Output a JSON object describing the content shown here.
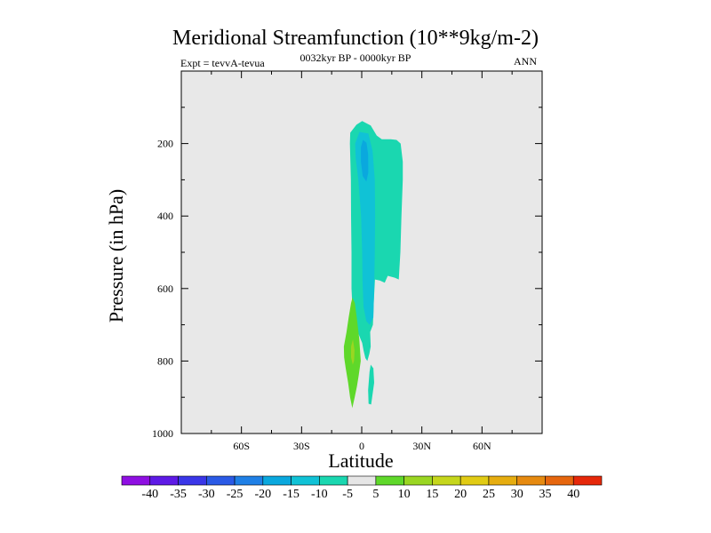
{
  "chart_data": {
    "type": "contour",
    "title": "Meridional Streamfunction (10**9kg/m-2)",
    "subtitle": "0032kyr BP - 0000kyr BP",
    "left_label": "Expt = tevvA-tevua",
    "right_label": "ANN",
    "xlabel": "Latitude",
    "ylabel": "Pressure (in hPa)",
    "xlim": [
      -90,
      90
    ],
    "ylim": [
      1000,
      0
    ],
    "x_ticks": [
      {
        "value": -60,
        "label": "60S"
      },
      {
        "value": -30,
        "label": "30S"
      },
      {
        "value": 0,
        "label": "0"
      },
      {
        "value": 30,
        "label": "30N"
      },
      {
        "value": 60,
        "label": "60N"
      }
    ],
    "y_ticks": [
      {
        "value": 200,
        "label": "200"
      },
      {
        "value": 400,
        "label": "400"
      },
      {
        "value": 600,
        "label": "600"
      },
      {
        "value": 800,
        "label": "800"
      },
      {
        "value": 1000,
        "label": "1000"
      }
    ],
    "background_color": "#e8e8e8",
    "regions": [
      {
        "name": "neg-5",
        "level": -10,
        "color": "#1ad7b0",
        "points": [
          [
            -5.7,
            170
          ],
          [
            -2.6,
            148
          ],
          [
            0.2,
            138
          ],
          [
            4.5,
            150
          ],
          [
            7.5,
            178
          ],
          [
            10,
            188
          ],
          [
            14.5,
            188
          ],
          [
            17.4,
            190
          ],
          [
            19.4,
            200
          ],
          [
            20.5,
            250
          ],
          [
            20.5,
            300
          ],
          [
            19.8,
            400
          ],
          [
            19.3,
            500
          ],
          [
            18.5,
            575
          ],
          [
            16.5,
            570
          ],
          [
            13,
            565
          ],
          [
            11.5,
            584
          ],
          [
            9,
            578
          ],
          [
            6.6,
            575
          ],
          [
            6,
            640
          ],
          [
            5.6,
            700
          ],
          [
            4.2,
            720
          ],
          [
            4.5,
            760
          ],
          [
            3.8,
            780
          ],
          [
            2.8,
            800
          ],
          [
            1.8,
            792
          ],
          [
            0.9,
            770
          ],
          [
            0.2,
            750
          ],
          [
            -2,
            720
          ],
          [
            -4.4,
            680
          ],
          [
            -5.1,
            600
          ],
          [
            -5.1,
            500
          ],
          [
            -5.3,
            400
          ],
          [
            -5.4,
            300
          ],
          [
            -5.9,
            200
          ]
        ]
      },
      {
        "name": "neg-5-lower",
        "level": -10,
        "color": "#1ad7b0",
        "points": [
          [
            4.5,
            810
          ],
          [
            5.8,
            820
          ],
          [
            6.2,
            860
          ],
          [
            4.7,
            920
          ],
          [
            3.4,
            918
          ],
          [
            3.2,
            880
          ],
          [
            3.9,
            830
          ]
        ]
      },
      {
        "name": "neg-10",
        "level": -15,
        "color": "#10c2d6",
        "points": [
          [
            -3.3,
            200
          ],
          [
            -1.1,
            168
          ],
          [
            3.3,
            172
          ],
          [
            5.4,
            220
          ],
          [
            6.5,
            300
          ],
          [
            6.7,
            400
          ],
          [
            6.5,
            500
          ],
          [
            6.2,
            600
          ],
          [
            5.8,
            680
          ],
          [
            3.9,
            700
          ],
          [
            2.3,
            690
          ],
          [
            0.9,
            650
          ],
          [
            0.4,
            580
          ],
          [
            0.2,
            500
          ],
          [
            -0.3,
            400
          ],
          [
            -1.7,
            300
          ],
          [
            -3,
            240
          ]
        ]
      },
      {
        "name": "neg-15",
        "level": -20,
        "color": "#0aa8de",
        "points": [
          [
            -0.4,
            210
          ],
          [
            0.6,
            190
          ],
          [
            2.4,
            198
          ],
          [
            3.2,
            230
          ],
          [
            3.3,
            280
          ],
          [
            2.3,
            305
          ],
          [
            0.5,
            290
          ],
          [
            -0.4,
            250
          ]
        ]
      },
      {
        "name": "pos-5",
        "level": 10,
        "color": "#5fd82a",
        "points": [
          [
            -8.9,
            760
          ],
          [
            -7.6,
            720
          ],
          [
            -6.5,
            680
          ],
          [
            -5.3,
            640
          ],
          [
            -4.6,
            625
          ],
          [
            -3.4,
            640
          ],
          [
            -2.5,
            680
          ],
          [
            -1.2,
            740
          ],
          [
            -0.5,
            800
          ],
          [
            -1.5,
            840
          ],
          [
            -2.4,
            870
          ],
          [
            -3.5,
            900
          ],
          [
            -4.7,
            930
          ],
          [
            -5.8,
            900
          ],
          [
            -6.8,
            860
          ],
          [
            -8,
            820
          ],
          [
            -8.8,
            790
          ]
        ]
      },
      {
        "name": "pos-10",
        "level": 15,
        "color": "#9ad622",
        "points": [
          [
            -5.3,
            760
          ],
          [
            -4.4,
            740
          ],
          [
            -3.6,
            770
          ],
          [
            -3.8,
            800
          ],
          [
            -4.5,
            810
          ],
          [
            -5.3,
            790
          ]
        ]
      }
    ],
    "colorbar": {
      "labels": [
        "-40",
        "-35",
        "-30",
        "-25",
        "-20",
        "-15",
        "-10",
        "-5",
        "5",
        "10",
        "15",
        "20",
        "25",
        "30",
        "35",
        "40"
      ],
      "colors": [
        "#8f0fe2",
        "#5e1ae6",
        "#3a36e8",
        "#2a5ae6",
        "#1f80e6",
        "#0aa8de",
        "#10c2d6",
        "#1ad7b0",
        "#e6e6e6",
        "#5fd82a",
        "#9ad622",
        "#c5d61c",
        "#e1cb14",
        "#e6ad10",
        "#e68a10",
        "#e6660e",
        "#e6280a"
      ]
    }
  }
}
